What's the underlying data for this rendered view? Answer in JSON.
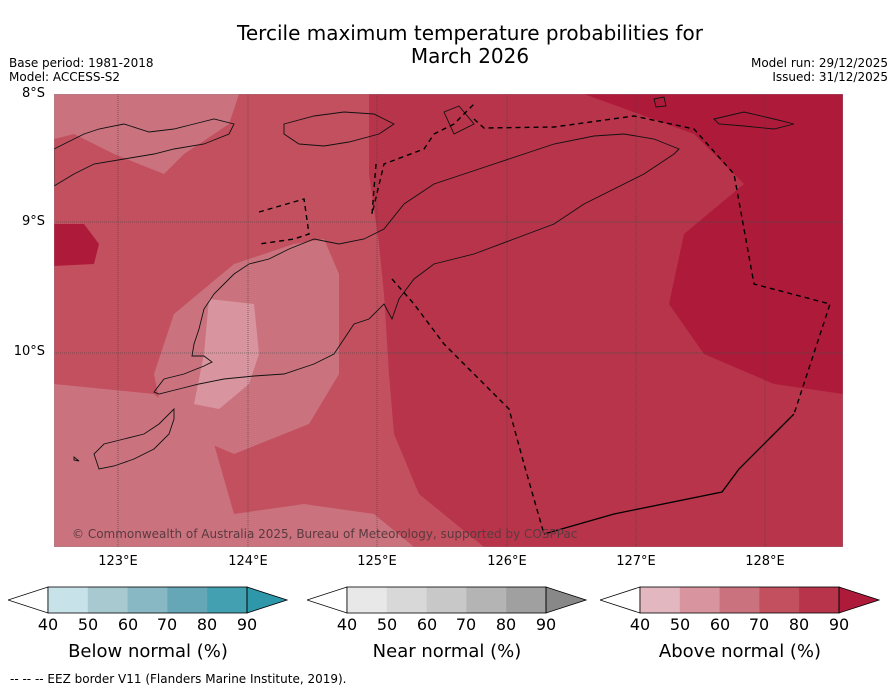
{
  "header": {
    "title_line1": "Tercile maximum temperature probabilities for",
    "title_line2": "March 2026",
    "base_period": "Base period: 1981-2018",
    "model": "Model: ACCESS-S2",
    "model_run": "Model run: 29/12/2025",
    "issued": "Issued: 31/12/2025"
  },
  "map": {
    "lat_labels": [
      "8°S",
      "9°S",
      "10°S"
    ],
    "lon_labels": [
      "123°E",
      "124°E",
      "125°E",
      "126°E",
      "127°E",
      "128°E"
    ],
    "copyright": "© Commonwealth of Australia 2025, Bureau of Meteorology, supported by COSPPac"
  },
  "colorbars": [
    {
      "title": "Below normal (%)",
      "ticks": [
        "40",
        "50",
        "60",
        "70",
        "80",
        "90"
      ],
      "colors": [
        "#c8e2ea",
        "#a8c9d0",
        "#88b8c4",
        "#65a7b6",
        "#43a0b0",
        "#2e97aa"
      ]
    },
    {
      "title": "Near normal (%)",
      "ticks": [
        "40",
        "50",
        "60",
        "70",
        "80",
        "90"
      ],
      "colors": [
        "#e8e8e8",
        "#d8d8d8",
        "#c8c8c8",
        "#b4b4b4",
        "#a0a0a0",
        "#888888"
      ]
    },
    {
      "title": "Above normal (%)",
      "ticks": [
        "40",
        "50",
        "60",
        "70",
        "80",
        "90"
      ],
      "colors": [
        "#e3b7bf",
        "#d8959f",
        "#ca737e",
        "#c2505f",
        "#b7344a",
        "#ae1b3a"
      ]
    }
  ],
  "footnote": "--  --  -- EEZ border V11 (Flanders Marine Institute, 2019)."
}
